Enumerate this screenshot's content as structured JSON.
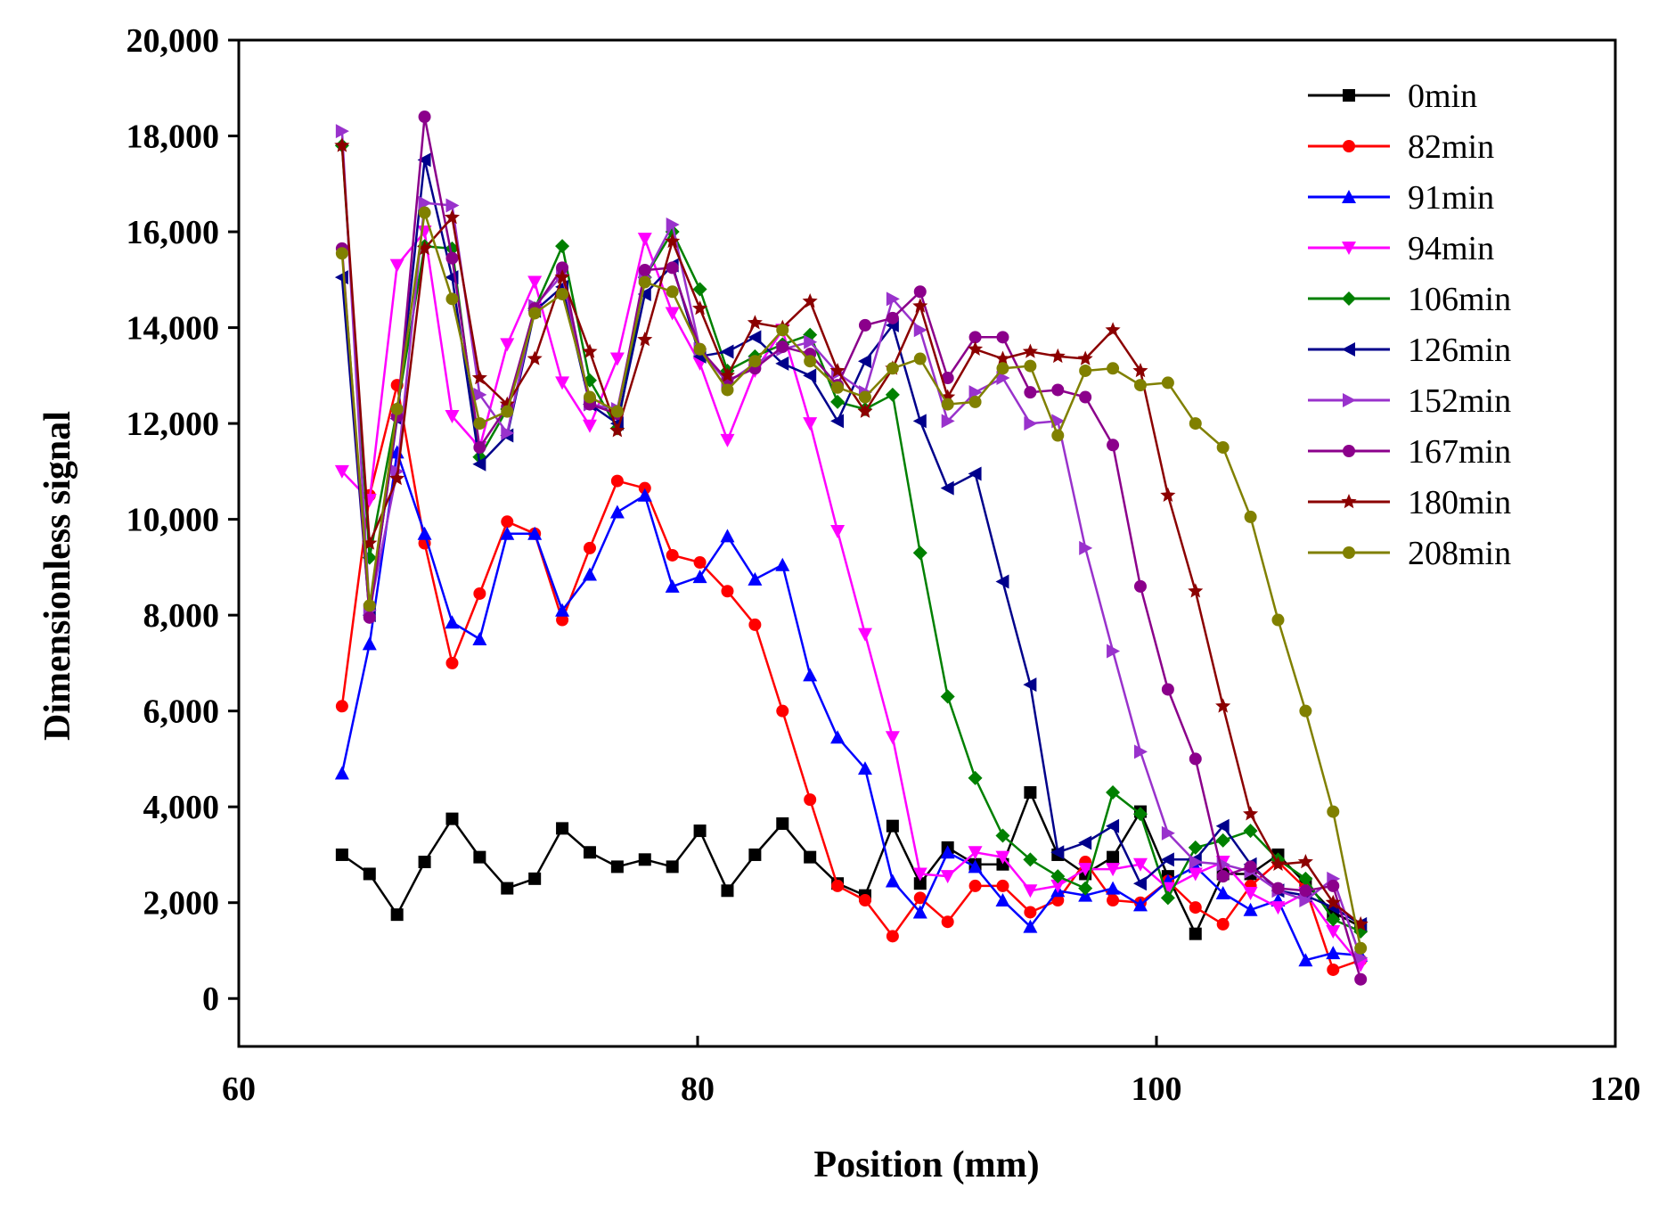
{
  "chart_data": {
    "type": "line",
    "title": "",
    "xlabel": "Position (mm)",
    "ylabel": "Dimensionless signal",
    "xlim": [
      60,
      120
    ],
    "ylim": [
      -1000,
      20000
    ],
    "xticks": [
      60,
      80,
      100,
      120
    ],
    "xtick_labels": [
      "60",
      "80",
      "100",
      "120"
    ],
    "yticks": [
      0,
      2000,
      4000,
      6000,
      8000,
      10000,
      12000,
      14000,
      16000,
      18000,
      20000
    ],
    "ytick_labels": [
      "0",
      "2,000",
      "4,000",
      "6,000",
      "8,000",
      "10,000",
      "12,000",
      "14,000",
      "16,000",
      "18,000",
      "20,000"
    ],
    "legend_position": "top-right",
    "x": [
      64.5,
      65.7,
      66.9,
      68.1,
      69.3,
      70.5,
      71.7,
      72.9,
      74.1,
      75.3,
      76.5,
      77.7,
      78.9,
      80.1,
      81.3,
      82.5,
      83.7,
      84.9,
      86.1,
      87.3,
      88.5,
      89.7,
      90.9,
      92.1,
      93.3,
      94.5,
      95.7,
      96.9,
      98.1,
      99.3,
      100.5,
      101.7,
      102.9,
      104.1,
      105.3,
      106.5,
      107.7,
      108.9
    ],
    "series": [
      {
        "name": "0min",
        "color": "#000000",
        "marker": "square",
        "values": [
          3000,
          2600,
          1750,
          2850,
          3750,
          2950,
          2300,
          2500,
          3550,
          3050,
          2750,
          2900,
          2750,
          3500,
          2250,
          3000,
          3650,
          2950,
          2400,
          2150,
          3600,
          2400,
          3150,
          2800,
          2800,
          4300,
          3000,
          2600,
          2950,
          3900,
          2550,
          1350,
          2600,
          2600,
          3000,
          2400,
          1800,
          1500
        ]
      },
      {
        "name": "82min",
        "color": "#ff0000",
        "marker": "circle",
        "values": [
          6100,
          10500,
          12800,
          9500,
          7000,
          8450,
          9950,
          9700,
          7900,
          9400,
          10800,
          10650,
          9250,
          9100,
          8500,
          7800,
          6000,
          4150,
          2350,
          2050,
          1300,
          2100,
          1600,
          2350,
          2350,
          1800,
          2050,
          2850,
          2050,
          2000,
          2450,
          1900,
          1550,
          2350,
          2850,
          2300,
          600,
          800
        ]
      },
      {
        "name": "91min",
        "color": "#0000ff",
        "marker": "triangle-up",
        "values": [
          4700,
          7400,
          11400,
          9700,
          7850,
          7500,
          9700,
          9700,
          8100,
          8850,
          10150,
          10500,
          8600,
          8800,
          9650,
          8750,
          9050,
          6750,
          5450,
          4800,
          2450,
          1800,
          3050,
          2750,
          2050,
          1500,
          2250,
          2150,
          2300,
          1950,
          2450,
          2750,
          2200,
          1850,
          2050,
          800,
          950,
          900
        ]
      },
      {
        "name": "94min",
        "color": "#ff00ff",
        "marker": "triangle-down",
        "values": [
          11000,
          10400,
          15300,
          16000,
          12150,
          11500,
          13650,
          14950,
          12850,
          11950,
          13350,
          15850,
          14300,
          13250,
          11650,
          13100,
          13950,
          12000,
          9750,
          7600,
          5450,
          2600,
          2550,
          3050,
          2950,
          2250,
          2350,
          2700,
          2700,
          2800,
          2300,
          2600,
          2850,
          2200,
          1900,
          2200,
          1400,
          700
        ]
      },
      {
        "name": "106min",
        "color": "#008000",
        "marker": "diamond",
        "values": [
          17800,
          9200,
          12300,
          15700,
          15650,
          11300,
          12300,
          14400,
          15700,
          12900,
          11900,
          15050,
          16000,
          14800,
          13100,
          13400,
          13650,
          13850,
          12450,
          12300,
          12600,
          9300,
          6300,
          4600,
          3400,
          2900,
          2550,
          2300,
          4300,
          3850,
          2100,
          3150,
          3300,
          3500,
          2900,
          2500,
          1650,
          1400
        ]
      },
      {
        "name": "126min",
        "color": "#00008b",
        "marker": "triangle-left",
        "values": [
          15050,
          8000,
          12100,
          17500,
          15050,
          11150,
          11750,
          14350,
          14850,
          12400,
          12000,
          14700,
          15300,
          13400,
          13500,
          13800,
          13250,
          13000,
          12050,
          13300,
          14050,
          12050,
          10650,
          10950,
          8700,
          6550,
          3050,
          3250,
          3600,
          2400,
          2900,
          2900,
          3600,
          2800,
          2250,
          2150,
          1900,
          1550
        ]
      },
      {
        "name": "152min",
        "color": "#9932cc",
        "marker": "triangle-right",
        "values": [
          18100,
          8100,
          11000,
          16600,
          16550,
          12600,
          11800,
          14450,
          15100,
          12400,
          12300,
          15050,
          16150,
          13550,
          12850,
          13250,
          13550,
          13700,
          13050,
          12650,
          14600,
          13950,
          12050,
          12650,
          12950,
          12000,
          12050,
          9400,
          7250,
          5150,
          3450,
          2850,
          2800,
          2650,
          2250,
          2050,
          2500,
          850
        ]
      },
      {
        "name": "167min",
        "color": "#8b008b",
        "marker": "circle",
        "values": [
          15650,
          7950,
          12150,
          18400,
          15450,
          11500,
          12350,
          14400,
          15250,
          12400,
          12200,
          15200,
          15250,
          13550,
          12900,
          13150,
          13600,
          13450,
          12800,
          14050,
          14200,
          14750,
          12950,
          13800,
          13800,
          12650,
          12700,
          12550,
          11550,
          8600,
          6450,
          5000,
          2550,
          2750,
          2300,
          2250,
          2350,
          400
        ]
      },
      {
        "name": "180min",
        "color": "#8b0000",
        "marker": "star",
        "values": [
          17800,
          9500,
          10850,
          15650,
          16300,
          12950,
          12400,
          13350,
          15050,
          13500,
          11850,
          13750,
          15800,
          14400,
          13000,
          14100,
          14000,
          14550,
          13100,
          12250,
          13150,
          14450,
          12550,
          13550,
          13350,
          13500,
          13400,
          13350,
          13950,
          13100,
          10500,
          8500,
          6100,
          3850,
          2800,
          2850,
          2000,
          1550
        ]
      },
      {
        "name": "208min",
        "color": "#808000",
        "marker": "circle",
        "values": [
          15550,
          8200,
          12300,
          16400,
          14600,
          12000,
          12250,
          14300,
          14700,
          12550,
          12250,
          14950,
          14750,
          13550,
          12700,
          13300,
          13950,
          13300,
          12750,
          12550,
          13150,
          13350,
          12400,
          12450,
          13150,
          13200,
          11750,
          13100,
          13150,
          12800,
          12850,
          12000,
          11500,
          10050,
          7900,
          6000,
          3900,
          1050
        ]
      }
    ]
  }
}
